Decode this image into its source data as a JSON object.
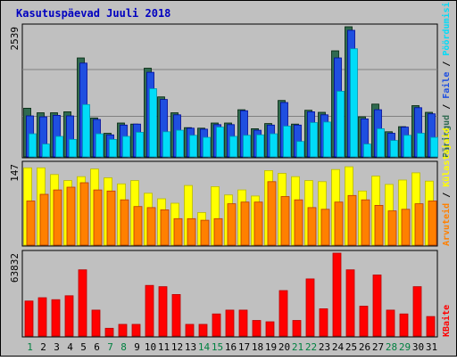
{
  "title": "Kasutuspäevad Juuli 2018",
  "colors": {
    "outer_bg": "#c0c0c0",
    "plot_bg": "#c0c0c0",
    "title": "#0000c0",
    "hits_green": "#306a50",
    "files_blue": "#1f4fe0",
    "pages_cyan": "#00dcf8",
    "visits_yellow": "#ffff00",
    "sites_orange": "#ff8000",
    "kbytes_red": "#ff0000",
    "weekend_label": "#008040",
    "weekday_label": "#000000"
  },
  "chart_data": [
    {
      "type": "bar",
      "panel": "hits",
      "ymax_label": "2539",
      "ylim": [
        0,
        2539
      ],
      "right_label_parts": [
        "Päringud",
        "Faile",
        "Pöördumisi"
      ],
      "right_label_colors": [
        "#306a50",
        "#1f4fe0",
        "#00dcf8"
      ],
      "categories": [
        "1",
        "2",
        "3",
        "4",
        "5",
        "6",
        "7",
        "8",
        "9",
        "10",
        "11",
        "12",
        "13",
        "14",
        "15",
        "16",
        "17",
        "18",
        "19",
        "20",
        "21",
        "22",
        "23",
        "24",
        "25",
        "26",
        "27",
        "28",
        "29",
        "30",
        "31"
      ],
      "series": [
        {
          "name": "Päringud",
          "color": "#306a50",
          "values": [
            950,
            860,
            860,
            880,
            1930,
            760,
            460,
            660,
            640,
            1730,
            1170,
            860,
            570,
            560,
            660,
            660,
            920,
            550,
            650,
            1100,
            640,
            910,
            870,
            2070,
            2539,
            780,
            1030,
            490,
            590,
            1000,
            870
          ]
        },
        {
          "name": "Faile",
          "color": "#1f4fe0",
          "values": [
            800,
            780,
            810,
            800,
            1830,
            730,
            430,
            620,
            640,
            1650,
            1120,
            820,
            560,
            540,
            630,
            630,
            900,
            520,
            620,
            1060,
            620,
            880,
            820,
            1930,
            2470,
            740,
            920,
            460,
            580,
            960,
            840
          ]
        },
        {
          "name": "Pöördumisi",
          "color": "#00dcf8",
          "values": [
            450,
            250,
            400,
            340,
            1020,
            450,
            340,
            400,
            480,
            1330,
            490,
            520,
            420,
            380,
            580,
            400,
            420,
            430,
            450,
            600,
            300,
            670,
            680,
            1280,
            2110,
            250,
            550,
            320,
            420,
            460,
            380
          ]
        }
      ]
    },
    {
      "type": "bar",
      "panel": "visits",
      "ymax_label": "147",
      "ylim": [
        0,
        147
      ],
      "right_label_parts": [
        "Arvuteid",
        "Külastajaid"
      ],
      "right_label_colors": [
        "#ff8000",
        "#ffff00"
      ],
      "categories": [
        "1",
        "2",
        "3",
        "4",
        "5",
        "6",
        "7",
        "8",
        "9",
        "10",
        "11",
        "12",
        "13",
        "14",
        "15",
        "16",
        "17",
        "18",
        "19",
        "20",
        "21",
        "22",
        "23",
        "24",
        "25",
        "26",
        "27",
        "28",
        "29",
        "30",
        "31"
      ],
      "series": [
        {
          "name": "Külastajaid",
          "color": "#ffff00",
          "values": [
            140,
            140,
            128,
            117,
            124,
            138,
            122,
            111,
            117,
            94,
            84,
            76,
            108,
            59,
            106,
            91,
            100,
            89,
            135,
            130,
            124,
            117,
            115,
            137,
            142,
            98,
            125,
            110,
            118,
            131,
            116
          ]
        },
        {
          "name": "Arvuteid",
          "color": "#ff8000",
          "values": [
            80,
            92,
            100,
            105,
            113,
            100,
            98,
            82,
            70,
            68,
            64,
            48,
            48,
            45,
            48,
            75,
            78,
            78,
            115,
            88,
            82,
            68,
            65,
            78,
            90,
            82,
            72,
            62,
            65,
            75,
            80
          ]
        }
      ]
    },
    {
      "type": "bar",
      "panel": "kbytes",
      "ymax_label": "63832",
      "ylim": [
        0,
        63832
      ],
      "right_label_parts": [
        "KBaite"
      ],
      "right_label_colors": [
        "#ff0000"
      ],
      "categories": [
        "1",
        "2",
        "3",
        "4",
        "5",
        "6",
        "7",
        "8",
        "9",
        "10",
        "11",
        "12",
        "13",
        "14",
        "15",
        "16",
        "17",
        "18",
        "19",
        "20",
        "21",
        "22",
        "23",
        "24",
        "25",
        "26",
        "27",
        "28",
        "29",
        "30",
        "31"
      ],
      "series": [
        {
          "name": "KBaite",
          "color": "#ff0000",
          "values": [
            27000,
            29500,
            28000,
            31000,
            51000,
            20000,
            6000,
            9000,
            9000,
            39000,
            38000,
            32000,
            9000,
            9000,
            17000,
            20000,
            20000,
            12000,
            11000,
            35000,
            12000,
            44000,
            21000,
            63832,
            51000,
            23000,
            47000,
            20000,
            17000,
            38000,
            15000
          ]
        }
      ]
    }
  ],
  "x_weekend_days": [
    "1",
    "7",
    "8",
    "14",
    "15",
    "21",
    "22",
    "28",
    "29"
  ]
}
